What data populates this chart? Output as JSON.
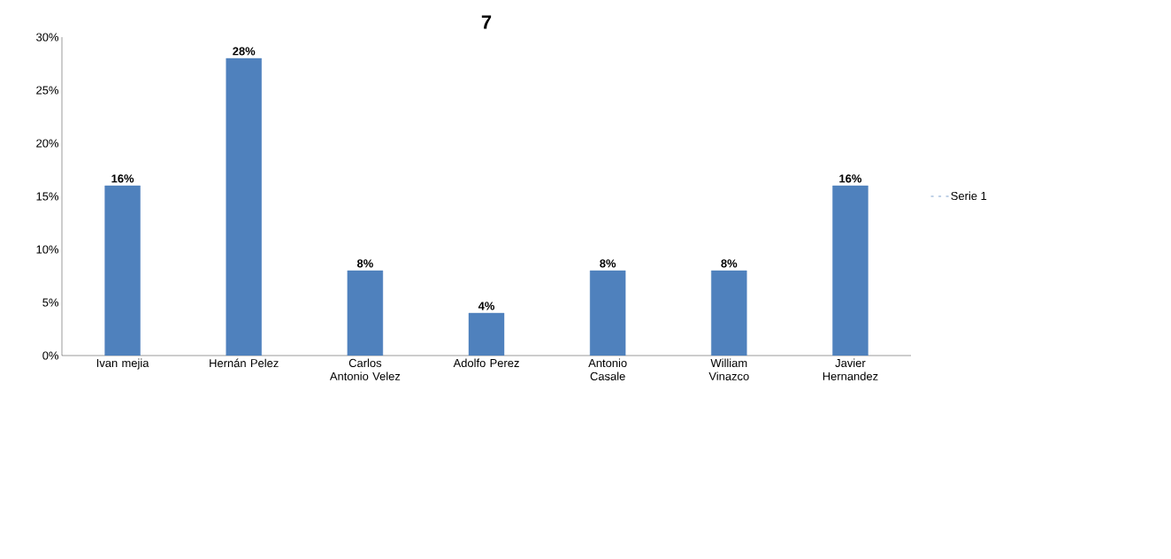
{
  "chart_data": {
    "type": "bar",
    "title": "7",
    "categories": [
      "Ivan mejia",
      "Hernán Pelez",
      "Carlos Antonio Velez",
      "Adolfo Perez",
      "Antonio Casale",
      "William Vinazco",
      "Javier Hernandez"
    ],
    "series": [
      {
        "name": "Serie 1",
        "color": "#4f81bd",
        "values": [
          16,
          28,
          8,
          4,
          8,
          8,
          16
        ],
        "value_labels": [
          "16%",
          "28%",
          "8%",
          "4%",
          "8%",
          "8%",
          "16%"
        ]
      }
    ],
    "ylim": [
      0,
      30
    ],
    "yticks": [
      {
        "value": 0,
        "label": "0%"
      },
      {
        "value": 5,
        "label": "5%"
      },
      {
        "value": 10,
        "label": "10%"
      },
      {
        "value": 15,
        "label": "15%"
      },
      {
        "value": 20,
        "label": "20%"
      },
      {
        "value": 25,
        "label": "25%"
      },
      {
        "value": 30,
        "label": "30%"
      }
    ],
    "legend": "right"
  }
}
